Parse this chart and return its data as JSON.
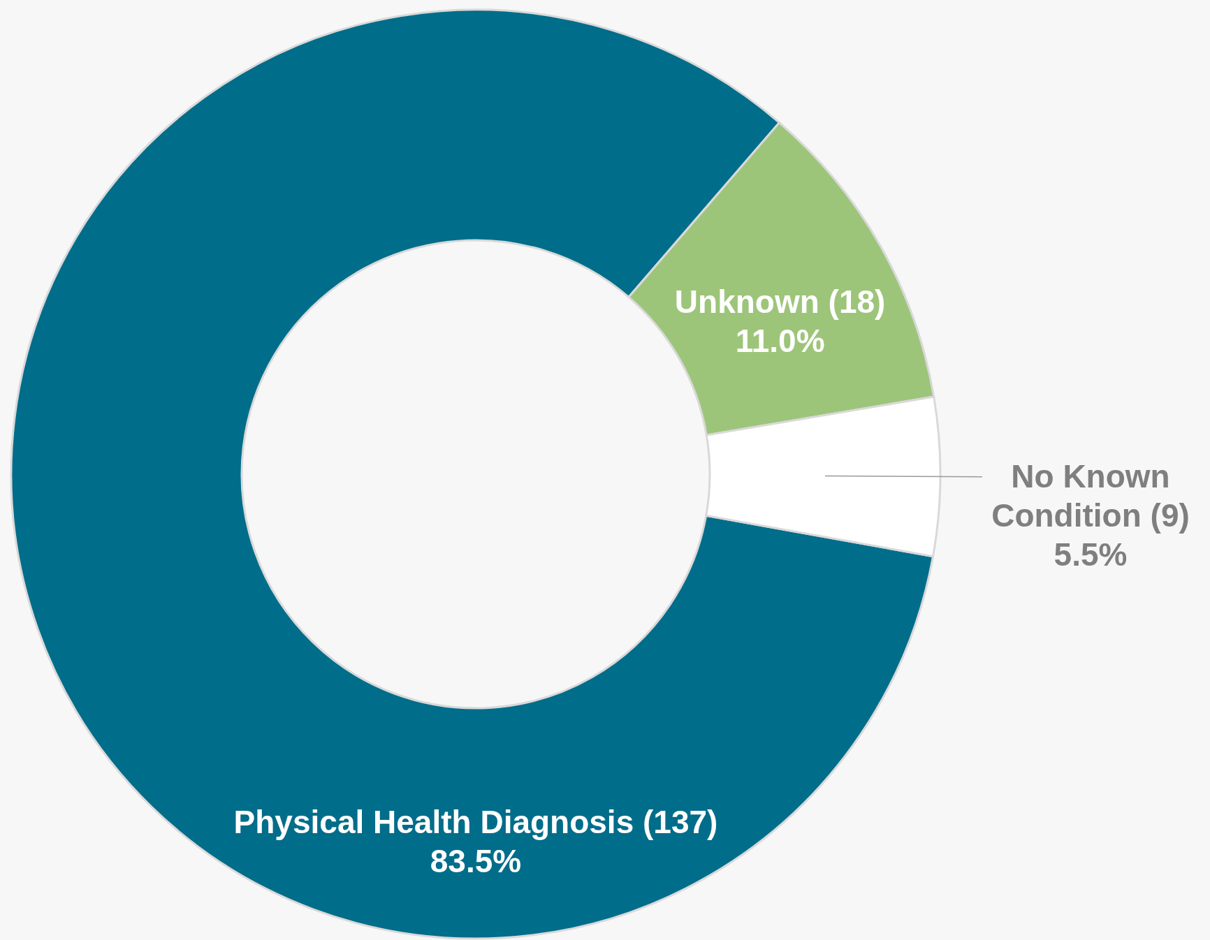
{
  "chart_data": {
    "type": "donut",
    "categories": [
      "Physical Health Diagnosis (137)",
      "Unknown (18)",
      "No Known Condition (9)"
    ],
    "values": [
      83.5,
      11.0,
      5.5
    ],
    "colors": [
      "#006d8a",
      "#9dc57a",
      "#ffffff"
    ],
    "value_labels": [
      "83.5%",
      "11.0%",
      "5.5%"
    ],
    "legend": false
  }
}
